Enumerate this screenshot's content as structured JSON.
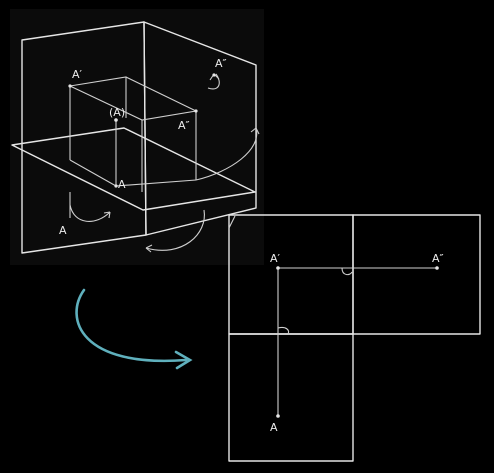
{
  "left_figure": {
    "point_labels": {
      "a_prime": "A′",
      "a_double_prime_top": "A″",
      "a_double_prime_mid": "A″",
      "a_space": "(A)",
      "a": "A",
      "a_lower": "A"
    }
  },
  "right_figure": {
    "point_labels": {
      "a_prime": "A′",
      "a_double_prime": "A″",
      "a": "A"
    }
  },
  "connector": {
    "color": "#5fb0bd"
  }
}
